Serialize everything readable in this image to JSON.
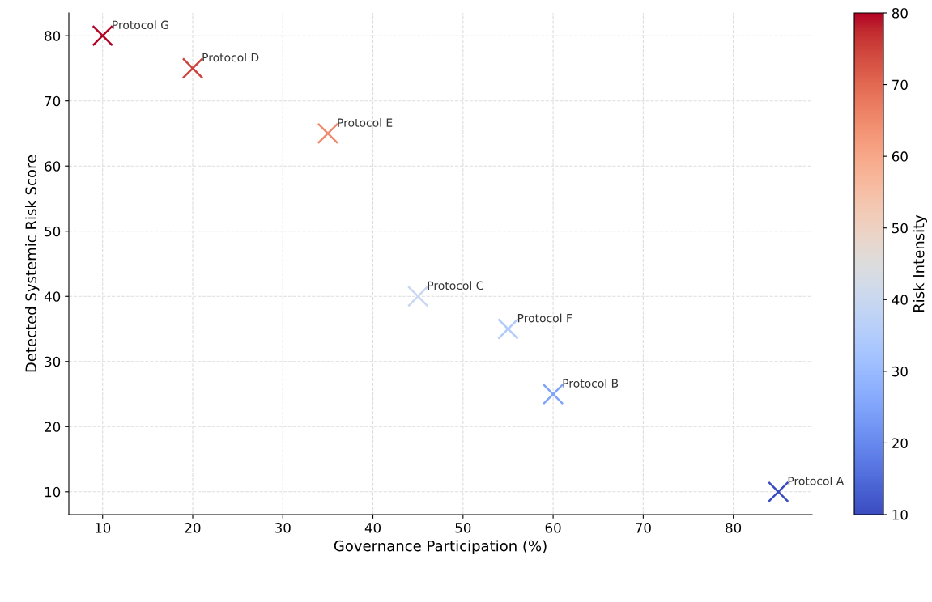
{
  "chart_data": {
    "type": "scatter",
    "xlabel": "Governance Participation (%)",
    "ylabel": "Detected Systemic Risk Score",
    "clabel": "Risk Intensity",
    "x": [
      85,
      60,
      45,
      20,
      35,
      55,
      10
    ],
    "values": [
      10,
      25,
      40,
      75,
      65,
      35,
      80
    ],
    "cvalues": [
      10,
      25,
      40,
      75,
      65,
      35,
      80
    ],
    "marker": "cross",
    "clim": [
      10,
      80
    ],
    "cticks": [
      10,
      20,
      30,
      40,
      50,
      60,
      70,
      80
    ],
    "xlim": [
      6.25,
      88.75
    ],
    "xticks": [
      10,
      20,
      30,
      40,
      50,
      60,
      70,
      80
    ],
    "ylim": [
      6.5,
      83.5
    ],
    "yticks": [
      10,
      20,
      30,
      40,
      50,
      60,
      70,
      80
    ],
    "grid": true,
    "annotations": [
      {
        "text": "Protocol A",
        "x": 85,
        "y": 10
      },
      {
        "text": "Protocol B",
        "x": 60,
        "y": 25
      },
      {
        "text": "Protocol C",
        "x": 45,
        "y": 40
      },
      {
        "text": "Protocol D",
        "x": 20,
        "y": 75
      },
      {
        "text": "Protocol E",
        "x": 35,
        "y": 65
      },
      {
        "text": "Protocol F",
        "x": 55,
        "y": 35
      },
      {
        "text": "Protocol G",
        "x": 10,
        "y": 80
      }
    ]
  }
}
